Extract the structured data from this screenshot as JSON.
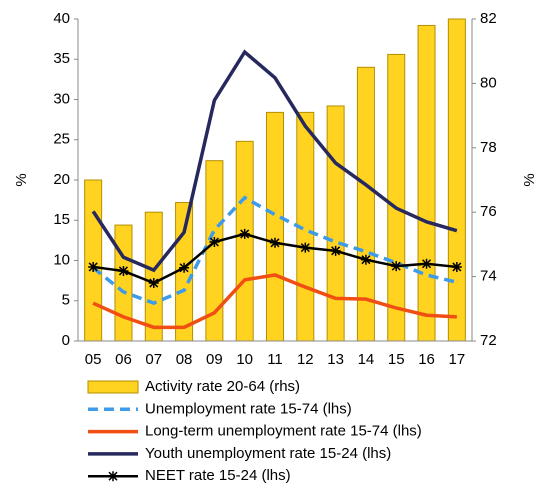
{
  "chart_data": {
    "type": "combo",
    "y_label": "%",
    "y2_label": "%",
    "categories": [
      "05",
      "06",
      "07",
      "08",
      "09",
      "10",
      "11",
      "12",
      "13",
      "14",
      "15",
      "16",
      "17"
    ],
    "ylim": [
      0,
      40
    ],
    "yticks": [
      0,
      5,
      10,
      15,
      20,
      25,
      30,
      35,
      40
    ],
    "y2lim": [
      72,
      82
    ],
    "y2ticks": [
      72,
      74,
      76,
      78,
      80,
      82
    ],
    "series": [
      {
        "name": "Activity rate 20-64 (rhs)",
        "mark": "bar",
        "axis": "y2",
        "color": "#FFD320",
        "edge": "#B38F00",
        "values": [
          77.0,
          75.6,
          76.0,
          76.3,
          77.6,
          78.2,
          79.1,
          79.1,
          79.3,
          80.5,
          80.9,
          81.8,
          82.0
        ]
      },
      {
        "name": "Unemployment rate 15-74 (lhs)",
        "mark": "line",
        "dash": true,
        "color": "#3D9BE9",
        "values": [
          9.1,
          6.1,
          4.7,
          6.3,
          13.8,
          17.8,
          15.7,
          13.8,
          12.3,
          11.1,
          9.7,
          8.2,
          7.3
        ]
      },
      {
        "name": "Long-term unemployment rate 15-74 (lhs)",
        "mark": "line",
        "color": "#F04E13",
        "values": [
          4.7,
          3.0,
          1.7,
          1.7,
          3.5,
          7.6,
          8.2,
          6.7,
          5.3,
          5.2,
          4.1,
          3.2,
          3.0
        ]
      },
      {
        "name": "Youth unemployment rate 15-24 (lhs)",
        "mark": "line",
        "color": "#27295E",
        "values": [
          16.1,
          10.4,
          8.8,
          13.5,
          29.9,
          35.9,
          32.7,
          26.7,
          22.1,
          19.4,
          16.5,
          14.8,
          13.7
        ]
      },
      {
        "name": "NEET rate 15-24 (lhs)",
        "mark": "line",
        "marker": "star",
        "color": "#000000",
        "values": [
          9.2,
          8.7,
          7.2,
          9.1,
          12.3,
          13.3,
          12.2,
          11.6,
          11.2,
          10.1,
          9.3,
          9.6,
          9.2
        ]
      }
    ]
  }
}
